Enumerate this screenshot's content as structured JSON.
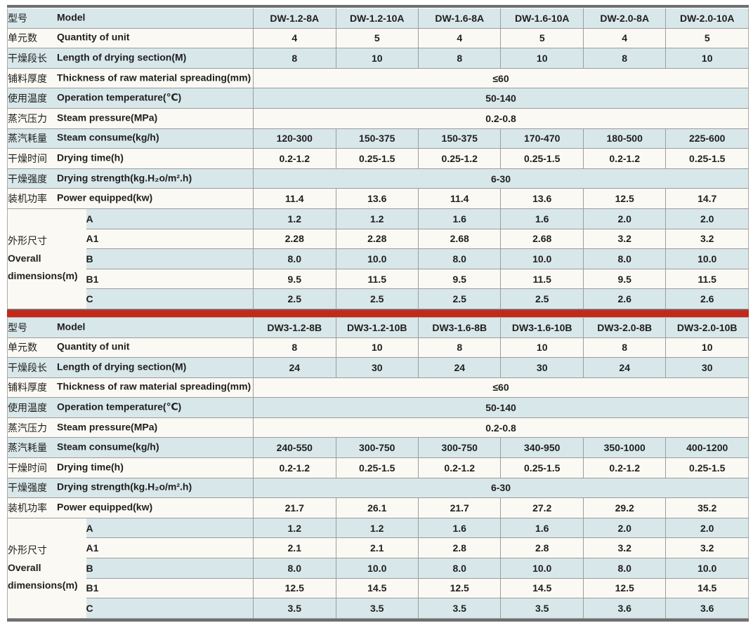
{
  "colors": {
    "row_blue": "#d8e7ea",
    "row_white": "#fbf9f4",
    "border_gray": "#9c9c9c",
    "edge_bar_gray": "#6f6f6f",
    "divider_red": "#c5271a",
    "divider_red_dark": "#8f4a3c",
    "text": "#1f1f1d"
  },
  "tables": [
    {
      "rows": [
        {
          "type": "values",
          "zh": "型号",
          "en": "Model",
          "model_row": true,
          "values": [
            "DW-1.2-8A",
            "DW-1.2-10A",
            "DW-1.6-8A",
            "DW-1.6-10A",
            "DW-2.0-8A",
            "DW-2.0-10A"
          ]
        },
        {
          "type": "values",
          "zh": "单元数",
          "en": "Quantity of unit",
          "values": [
            "4",
            "5",
            "4",
            "5",
            "4",
            "5"
          ]
        },
        {
          "type": "values",
          "zh": "干燥段长",
          "en": "Length of drying section(M)",
          "values": [
            "8",
            "10",
            "8",
            "10",
            "8",
            "10"
          ]
        },
        {
          "type": "span",
          "zh": "铺料厚度",
          "en": "Thickness of raw material spreading(mm)",
          "value": "≤60"
        },
        {
          "type": "span",
          "zh": "使用温度",
          "en": "Operation temperature(℃)",
          "value": "50-140"
        },
        {
          "type": "span",
          "zh": "蒸汽压力",
          "en": "Steam pressure(MPa)",
          "value": "0.2-0.8"
        },
        {
          "type": "values",
          "zh": "蒸汽耗量",
          "en": "Steam consume(kg/h)",
          "values": [
            "120-300",
            "150-375",
            "150-375",
            "170-470",
            "180-500",
            "225-600"
          ]
        },
        {
          "type": "values",
          "zh": "干燥时间",
          "en": "Drying time(h)",
          "values": [
            "0.2-1.2",
            "0.25-1.5",
            "0.25-1.2",
            "0.25-1.5",
            "0.2-1.2",
            "0.25-1.5"
          ]
        },
        {
          "type": "span",
          "zh": "干燥强度",
          "en": "Drying strength(kg.H₂o/m².h)",
          "value": "6-30"
        },
        {
          "type": "values",
          "zh": "装机功率",
          "en": "Power equipped(kw)",
          "values": [
            "11.4",
            "13.6",
            "11.4",
            "13.6",
            "12.5",
            "14.7"
          ]
        }
      ],
      "dimensions": {
        "zh": "外形尺寸",
        "en1": "Overall",
        "en2": "dimensions(m)",
        "rows": [
          {
            "label": "A",
            "values": [
              "1.2",
              "1.2",
              "1.6",
              "1.6",
              "2.0",
              "2.0"
            ]
          },
          {
            "label": "A1",
            "values": [
              "2.28",
              "2.28",
              "2.68",
              "2.68",
              "3.2",
              "3.2"
            ]
          },
          {
            "label": "B",
            "values": [
              "8.0",
              "10.0",
              "8.0",
              "10.0",
              "8.0",
              "10.0"
            ]
          },
          {
            "label": "B1",
            "values": [
              "9.5",
              "11.5",
              "9.5",
              "11.5",
              "9.5",
              "11.5"
            ]
          },
          {
            "label": "C",
            "values": [
              "2.5",
              "2.5",
              "2.5",
              "2.5",
              "2.6",
              "2.6"
            ]
          }
        ]
      }
    },
    {
      "rows": [
        {
          "type": "values",
          "zh": "型号",
          "en": "Model",
          "model_row": true,
          "values": [
            "DW3-1.2-8B",
            "DW3-1.2-10B",
            "DW3-1.6-8B",
            "DW3-1.6-10B",
            "DW3-2.0-8B",
            "DW3-2.0-10B"
          ]
        },
        {
          "type": "values",
          "zh": "单元数",
          "en": "Quantity of unit",
          "values": [
            "8",
            "10",
            "8",
            "10",
            "8",
            "10"
          ]
        },
        {
          "type": "values",
          "zh": "干燥段长",
          "en": "Length of drying section(M)",
          "values": [
            "24",
            "30",
            "24",
            "30",
            "24",
            "30"
          ]
        },
        {
          "type": "span",
          "zh": "铺料厚度",
          "en": "Thickness of raw material spreading(mm)",
          "value": "≤60"
        },
        {
          "type": "span",
          "zh": "使用温度",
          "en": "Operation temperature(℃)",
          "value": "50-140"
        },
        {
          "type": "span",
          "zh": "蒸汽压力",
          "en": "Steam pressure(MPa)",
          "value": "0.2-0.8"
        },
        {
          "type": "values",
          "zh": "蒸汽耗量",
          "en": "Steam consume(kg/h)",
          "values": [
            "240-550",
            "300-750",
            "300-750",
            "340-950",
            "350-1000",
            "400-1200"
          ]
        },
        {
          "type": "values",
          "zh": "干燥时间",
          "en": "Drying time(h)",
          "values": [
            "0.2-1.2",
            "0.25-1.5",
            "0.2-1.2",
            "0.25-1.5",
            "0.2-1.2",
            "0.25-1.5"
          ]
        },
        {
          "type": "span",
          "zh": "干燥强度",
          "en": "Drying strength(kg.H₂o/m².h)",
          "value": "6-30"
        },
        {
          "type": "values",
          "zh": "装机功率",
          "en": "Power equipped(kw)",
          "values": [
            "21.7",
            "26.1",
            "21.7",
            "27.2",
            "29.2",
            "35.2"
          ]
        }
      ],
      "dimensions": {
        "zh": "外形尺寸",
        "en1": "Overall",
        "en2": "dimensions(m)",
        "rows": [
          {
            "label": "A",
            "values": [
              "1.2",
              "1.2",
              "1.6",
              "1.6",
              "2.0",
              "2.0"
            ]
          },
          {
            "label": "A1",
            "values": [
              "2.1",
              "2.1",
              "2.8",
              "2.8",
              "3.2",
              "3.2"
            ]
          },
          {
            "label": "B",
            "values": [
              "8.0",
              "10.0",
              "8.0",
              "10.0",
              "8.0",
              "10.0"
            ]
          },
          {
            "label": "B1",
            "values": [
              "12.5",
              "14.5",
              "12.5",
              "14.5",
              "12.5",
              "14.5"
            ]
          },
          {
            "label": "C",
            "values": [
              "3.5",
              "3.5",
              "3.5",
              "3.5",
              "3.6",
              "3.6"
            ]
          }
        ]
      }
    }
  ]
}
